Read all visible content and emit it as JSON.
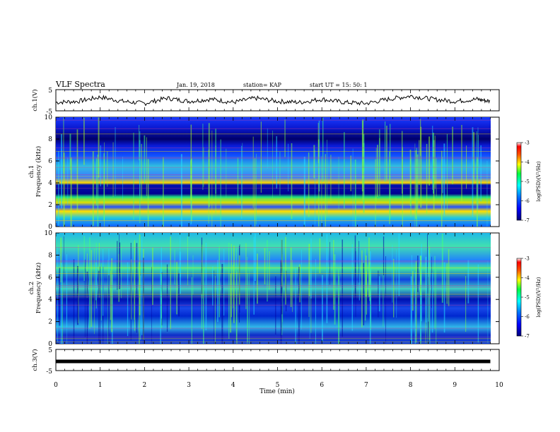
{
  "header": {
    "title": "VLF Spectra",
    "date": "Jan. 19, 2018",
    "station": "station= KAP",
    "start": "start  UT =   15: 50: 1"
  },
  "colors": {
    "colormap": [
      "#000080",
      "#0000ff",
      "#0060ff",
      "#00c8ff",
      "#00ff80",
      "#80ff00",
      "#ffff00",
      "#ff8000",
      "#ff0000",
      "#ffffff"
    ],
    "trace": "#000000"
  },
  "chart_data": [
    {
      "type": "line",
      "panel": "ch1-waveform",
      "ylabel": "ch.1(V)",
      "ylim": [
        -5,
        5
      ],
      "yticks": [
        "5",
        "-5"
      ],
      "x": [
        0,
        0.5,
        1,
        1.5,
        2,
        2.5,
        3,
        3.5,
        4,
        4.5,
        5,
        5.5,
        6,
        6.5,
        7,
        7.5,
        8,
        8.5,
        9,
        9.5,
        9.8
      ],
      "values": [
        -1,
        -0.5,
        1.5,
        -0.5,
        -1.5,
        1,
        -0.5,
        0.5,
        -1,
        1,
        -0.5,
        -1,
        0.5,
        -1,
        -1.5,
        0.5,
        2,
        0.5,
        -0.5,
        0.5,
        -0.5
      ]
    },
    {
      "type": "heatmap",
      "panel": "ch1-spectrogram",
      "ylabel_top": "ch.1",
      "ylabel": "Frequency (kHz)",
      "ylim": [
        0,
        10
      ],
      "yticks": [
        "0",
        "2",
        "4",
        "6",
        "8",
        "10"
      ],
      "colorbar": {
        "label": "log(PSD)(V²/Hz)",
        "range": [
          -7,
          -3
        ],
        "ticks": [
          "-3",
          "-4",
          "-5",
          "-6",
          "-7"
        ]
      }
    },
    {
      "type": "heatmap",
      "panel": "ch2-spectrogram",
      "ylabel_top": "ch.2",
      "ylabel": "Frequency (kHz)",
      "ylim": [
        0,
        10
      ],
      "yticks": [
        "0",
        "2",
        "4",
        "6",
        "8",
        "10"
      ],
      "colorbar": {
        "label": "log(PSD)(V²/Hz)",
        "range": [
          -7,
          -3
        ],
        "ticks": [
          "-3",
          "-4",
          "-5",
          "-6",
          "-7"
        ]
      }
    },
    {
      "type": "line",
      "panel": "ch3-waveform",
      "ylabel": "ch.3(V)",
      "ylim": [
        -5,
        5
      ],
      "yticks": [
        "5",
        "-5"
      ],
      "x": [
        0,
        9.8
      ],
      "values": [
        0,
        0
      ]
    }
  ],
  "xaxis": {
    "label": "Time (min)",
    "range": [
      0,
      10
    ],
    "ticks": [
      "0",
      "1",
      "2",
      "3",
      "4",
      "5",
      "6",
      "7",
      "8",
      "9",
      "10"
    ]
  }
}
